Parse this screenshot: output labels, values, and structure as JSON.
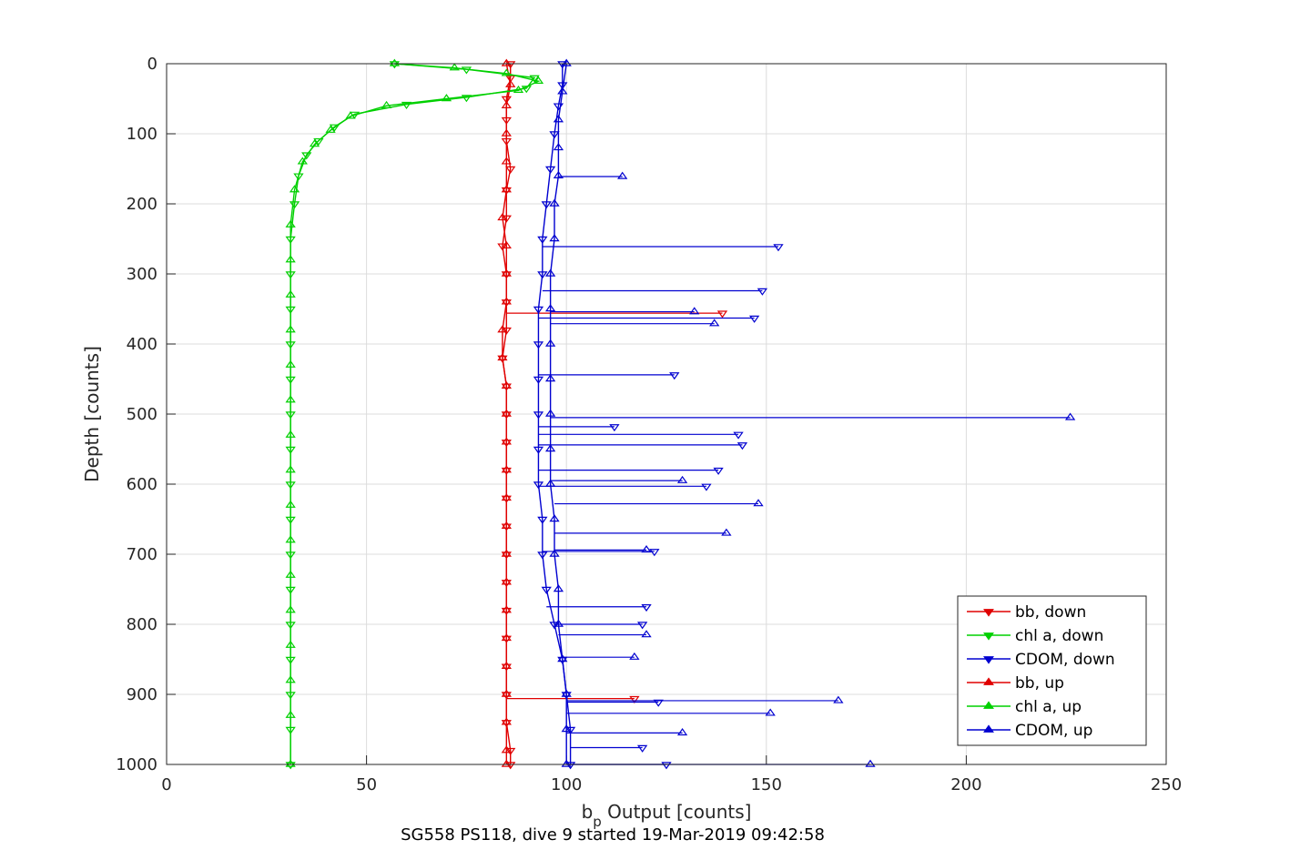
{
  "chart_data": {
    "type": "line",
    "title": "",
    "caption": "SG558 PS118, dive 9 started 19-Mar-2019 09:42:58",
    "xlabel_main": "b",
    "xlabel_sub": "p",
    "xlabel_rest": " Output [counts]",
    "ylabel": "Depth [counts]",
    "xlim": [
      0,
      250
    ],
    "ylim": [
      0,
      1000
    ],
    "y_reversed": true,
    "grid": true,
    "legend_position": "bottom-right",
    "x_ticks": [
      0,
      50,
      100,
      150,
      200,
      250
    ],
    "y_ticks": [
      0,
      100,
      200,
      300,
      400,
      500,
      600,
      700,
      800,
      900,
      1000
    ],
    "x_tick_labels": [
      "0",
      "50",
      "100",
      "150",
      "200",
      "250"
    ],
    "y_tick_labels": [
      "0",
      "100",
      "200",
      "300",
      "400",
      "500",
      "600",
      "700",
      "800",
      "900",
      "1000"
    ],
    "series": [
      {
        "name": "bb, down",
        "color": "#e00000",
        "marker": "triangle-down",
        "points": [
          [
            86,
            0
          ],
          [
            86,
            20
          ],
          [
            85,
            50
          ],
          [
            85,
            80
          ],
          [
            85,
            110
          ],
          [
            86,
            150
          ],
          [
            85,
            180
          ],
          [
            85,
            220
          ],
          [
            84,
            260
          ],
          [
            85,
            300
          ],
          [
            85,
            340
          ],
          [
            85,
            380
          ],
          [
            84,
            420
          ],
          [
            85,
            460
          ],
          [
            85,
            500
          ],
          [
            85,
            540
          ],
          [
            85,
            580
          ],
          [
            85,
            620
          ],
          [
            85,
            660
          ],
          [
            85,
            700
          ],
          [
            85,
            740
          ],
          [
            85,
            780
          ],
          [
            85,
            820
          ],
          [
            85,
            860
          ],
          [
            85,
            900
          ],
          [
            85,
            940
          ],
          [
            86,
            980
          ],
          [
            86,
            1000
          ]
        ],
        "spikes": [
          [
            139,
            356
          ],
          [
            117,
            906
          ]
        ]
      },
      {
        "name": "chl a, down",
        "color": "#00d000",
        "marker": "triangle-down",
        "points": [
          [
            57,
            0
          ],
          [
            75,
            8
          ],
          [
            92,
            20
          ],
          [
            90,
            35
          ],
          [
            75,
            48
          ],
          [
            60,
            58
          ],
          [
            47,
            72
          ],
          [
            42,
            90
          ],
          [
            38,
            110
          ],
          [
            35,
            130
          ],
          [
            33,
            160
          ],
          [
            32,
            200
          ],
          [
            31,
            250
          ],
          [
            31,
            300
          ],
          [
            31,
            350
          ],
          [
            31,
            400
          ],
          [
            31,
            450
          ],
          [
            31,
            500
          ],
          [
            31,
            550
          ],
          [
            31,
            600
          ],
          [
            31,
            650
          ],
          [
            31,
            700
          ],
          [
            31,
            750
          ],
          [
            31,
            800
          ],
          [
            31,
            850
          ],
          [
            31,
            900
          ],
          [
            31,
            950
          ],
          [
            31,
            1000
          ]
        ]
      },
      {
        "name": "CDOM, down",
        "color": "#0000d0",
        "marker": "triangle-down",
        "points": [
          [
            99,
            0
          ],
          [
            99,
            30
          ],
          [
            98,
            60
          ],
          [
            97,
            100
          ],
          [
            96,
            150
          ],
          [
            95,
            200
          ],
          [
            94,
            250
          ],
          [
            94,
            300
          ],
          [
            93,
            350
          ],
          [
            93,
            400
          ],
          [
            93,
            450
          ],
          [
            93,
            500
          ],
          [
            93,
            550
          ],
          [
            93,
            600
          ],
          [
            94,
            650
          ],
          [
            94,
            700
          ],
          [
            95,
            750
          ],
          [
            97,
            800
          ],
          [
            99,
            850
          ],
          [
            100,
            900
          ],
          [
            101,
            950
          ],
          [
            101,
            1000
          ]
        ],
        "spikes": [
          [
            153,
            261
          ],
          [
            149,
            324
          ],
          [
            147,
            363
          ],
          [
            127,
            444
          ],
          [
            112,
            518
          ],
          [
            143,
            529
          ],
          [
            144,
            544
          ],
          [
            138,
            580
          ],
          [
            135,
            603
          ],
          [
            122,
            696
          ],
          [
            120,
            775
          ],
          [
            119,
            800
          ],
          [
            123,
            911
          ],
          [
            119,
            976
          ],
          [
            125,
            1000
          ]
        ]
      },
      {
        "name": "bb, up",
        "color": "#e00000",
        "marker": "triangle-up",
        "points": [
          [
            85,
            0
          ],
          [
            86,
            30
          ],
          [
            85,
            60
          ],
          [
            85,
            100
          ],
          [
            85,
            140
          ],
          [
            85,
            180
          ],
          [
            84,
            220
          ],
          [
            85,
            260
          ],
          [
            85,
            300
          ],
          [
            85,
            340
          ],
          [
            84,
            380
          ],
          [
            84,
            420
          ],
          [
            85,
            460
          ],
          [
            85,
            500
          ],
          [
            85,
            540
          ],
          [
            85,
            580
          ],
          [
            85,
            620
          ],
          [
            85,
            660
          ],
          [
            85,
            700
          ],
          [
            85,
            740
          ],
          [
            85,
            780
          ],
          [
            85,
            820
          ],
          [
            85,
            860
          ],
          [
            85,
            900
          ],
          [
            85,
            940
          ],
          [
            85,
            980
          ],
          [
            85,
            1000
          ]
        ]
      },
      {
        "name": "chl a, up",
        "color": "#00d000",
        "marker": "triangle-up",
        "points": [
          [
            57,
            0
          ],
          [
            72,
            6
          ],
          [
            85,
            14
          ],
          [
            93,
            25
          ],
          [
            88,
            38
          ],
          [
            70,
            50
          ],
          [
            55,
            60
          ],
          [
            46,
            75
          ],
          [
            41,
            95
          ],
          [
            37,
            115
          ],
          [
            34,
            140
          ],
          [
            32,
            180
          ],
          [
            31,
            230
          ],
          [
            31,
            280
          ],
          [
            31,
            330
          ],
          [
            31,
            380
          ],
          [
            31,
            430
          ],
          [
            31,
            480
          ],
          [
            31,
            530
          ],
          [
            31,
            580
          ],
          [
            31,
            630
          ],
          [
            31,
            680
          ],
          [
            31,
            730
          ],
          [
            31,
            780
          ],
          [
            31,
            830
          ],
          [
            31,
            880
          ],
          [
            31,
            930
          ],
          [
            31,
            1000
          ]
        ]
      },
      {
        "name": "CDOM, up",
        "color": "#0000d0",
        "marker": "triangle-up",
        "points": [
          [
            100,
            0
          ],
          [
            99,
            40
          ],
          [
            98,
            80
          ],
          [
            98,
            120
          ],
          [
            98,
            160
          ],
          [
            97,
            200
          ],
          [
            97,
            250
          ],
          [
            96,
            300
          ],
          [
            96,
            350
          ],
          [
            96,
            400
          ],
          [
            96,
            450
          ],
          [
            96,
            500
          ],
          [
            96,
            550
          ],
          [
            96,
            600
          ],
          [
            97,
            650
          ],
          [
            97,
            700
          ],
          [
            98,
            750
          ],
          [
            98,
            800
          ],
          [
            99,
            850
          ],
          [
            100,
            900
          ],
          [
            100,
            950
          ],
          [
            100,
            1000
          ]
        ],
        "spikes": [
          [
            114,
            161
          ],
          [
            132,
            354
          ],
          [
            137,
            371
          ],
          [
            226,
            505
          ],
          [
            129,
            595
          ],
          [
            148,
            628
          ],
          [
            140,
            670
          ],
          [
            120,
            694
          ],
          [
            120,
            815
          ],
          [
            117,
            847
          ],
          [
            168,
            909
          ],
          [
            151,
            927
          ],
          [
            129,
            955
          ],
          [
            176,
            1000
          ]
        ]
      }
    ]
  }
}
